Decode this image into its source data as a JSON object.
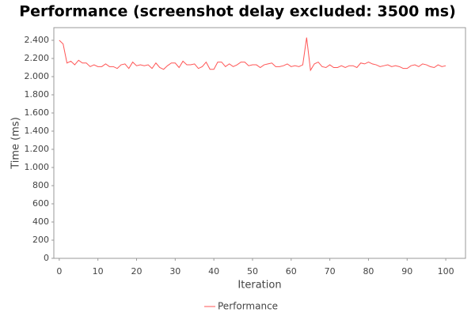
{
  "chart_data": {
    "type": "line",
    "title": "Performance (screenshot delay excluded: 3500 ms)",
    "x_label": "Iteration",
    "y_label": "Time (ms)",
    "x": [
      0,
      1,
      2,
      3,
      4,
      5,
      6,
      7,
      8,
      9,
      10,
      11,
      12,
      13,
      14,
      15,
      16,
      17,
      18,
      19,
      20,
      21,
      22,
      23,
      24,
      25,
      26,
      27,
      28,
      29,
      30,
      31,
      32,
      33,
      34,
      35,
      36,
      37,
      38,
      39,
      40,
      41,
      42,
      43,
      44,
      45,
      46,
      47,
      48,
      49,
      50,
      51,
      52,
      53,
      54,
      55,
      56,
      57,
      58,
      59,
      60,
      61,
      62,
      63,
      64,
      65,
      66,
      67,
      68,
      69,
      70,
      71,
      72,
      73,
      74,
      75,
      76,
      77,
      78,
      79,
      80,
      81,
      82,
      83,
      84,
      85,
      86,
      87,
      88,
      89,
      90,
      91,
      92,
      93,
      94,
      95,
      96,
      97,
      98,
      99,
      100
    ],
    "series": [
      {
        "name": "Performance",
        "color": "#ff5555",
        "values": [
          2400,
          2360,
          2150,
          2170,
          2130,
          2180,
          2150,
          2150,
          2110,
          2130,
          2110,
          2110,
          2140,
          2110,
          2110,
          2090,
          2130,
          2140,
          2090,
          2160,
          2120,
          2130,
          2120,
          2130,
          2090,
          2150,
          2100,
          2080,
          2120,
          2150,
          2150,
          2100,
          2170,
          2130,
          2130,
          2140,
          2090,
          2110,
          2160,
          2080,
          2080,
          2160,
          2160,
          2110,
          2140,
          2110,
          2130,
          2160,
          2160,
          2120,
          2130,
          2130,
          2100,
          2130,
          2140,
          2150,
          2110,
          2110,
          2120,
          2140,
          2110,
          2120,
          2110,
          2130,
          2430,
          2070,
          2140,
          2160,
          2110,
          2100,
          2130,
          2100,
          2100,
          2120,
          2100,
          2120,
          2120,
          2100,
          2150,
          2140,
          2160,
          2140,
          2130,
          2110,
          2120,
          2130,
          2110,
          2120,
          2110,
          2090,
          2090,
          2120,
          2130,
          2110,
          2140,
          2130,
          2110,
          2100,
          2130,
          2110,
          2120
        ]
      }
    ],
    "xlim": [
      -1.4,
      105.1
    ],
    "ylim": [
      0,
      2539
    ],
    "xticks": [
      0,
      10,
      20,
      30,
      40,
      50,
      60,
      70,
      80,
      90,
      100
    ],
    "yticks": [
      0,
      {
        "value": 200,
        "label": "200"
      },
      {
        "value": 400,
        "label": "400"
      },
      {
        "value": 600,
        "label": "600"
      },
      {
        "value": 800,
        "label": "800"
      },
      {
        "value": 1000,
        "label": "1.000"
      },
      {
        "value": 1200,
        "label": "1.200"
      },
      {
        "value": 1400,
        "label": "1.400"
      },
      {
        "value": 1600,
        "label": "1.600"
      },
      {
        "value": 1800,
        "label": "1.800"
      },
      {
        "value": 2000,
        "label": "2.000"
      },
      {
        "value": 2200,
        "label": "2.200"
      },
      {
        "value": 2400,
        "label": "2.400"
      }
    ],
    "grid": false,
    "legend": "bottom"
  }
}
